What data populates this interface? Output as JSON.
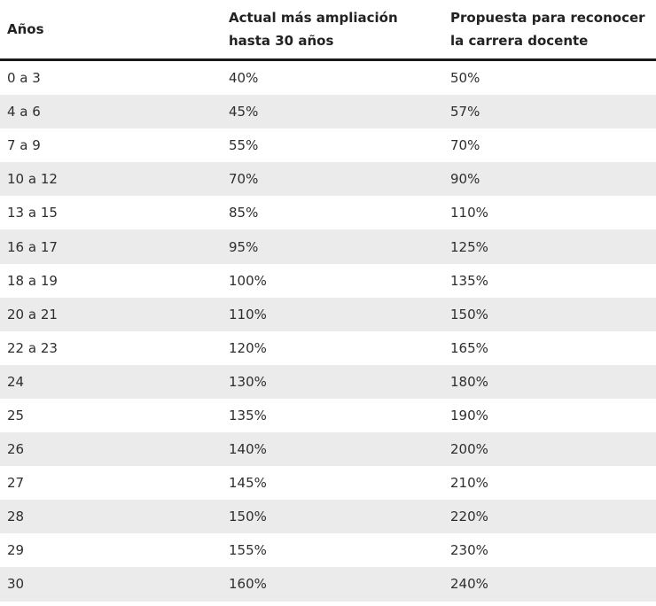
{
  "header": {
    "col1": "Años",
    "col2_line1": "Actual más ampliación",
    "col2_line2": "hasta 30 años",
    "col3_line1": "Propuesta para reconocer",
    "col3_line2": "la carrera docente"
  },
  "rows": [
    {
      "years": "0 a 3",
      "actual": "40%",
      "propuesta": "50%"
    },
    {
      "years": "4 a 6",
      "actual": "45%",
      "propuesta": "57%"
    },
    {
      "years": "7 a 9",
      "actual": "55%",
      "propuesta": "70%"
    },
    {
      "years": "10 a 12",
      "actual": "70%",
      "propuesta": "90%"
    },
    {
      "years": "13 a 15",
      "actual": "85%",
      "propuesta": "110%"
    },
    {
      "years": "16 a 17",
      "actual": "95%",
      "propuesta": "125%"
    },
    {
      "years": "18 a 19",
      "actual": "100%",
      "propuesta": "135%"
    },
    {
      "years": "20 a 21",
      "actual": "110%",
      "propuesta": "150%"
    },
    {
      "years": "22 a 23",
      "actual": "120%",
      "propuesta": "165%"
    },
    {
      "years": "24",
      "actual": "130%",
      "propuesta": "180%"
    },
    {
      "years": "25",
      "actual": "135%",
      "propuesta": "190%"
    },
    {
      "years": "26",
      "actual": "140%",
      "propuesta": "200%"
    },
    {
      "years": "27",
      "actual": "145%",
      "propuesta": "210%"
    },
    {
      "years": "28",
      "actual": "150%",
      "propuesta": "220%"
    },
    {
      "years": "29",
      "actual": "155%",
      "propuesta": "230%"
    },
    {
      "years": "30",
      "actual": "160%",
      "propuesta": "240%"
    }
  ]
}
